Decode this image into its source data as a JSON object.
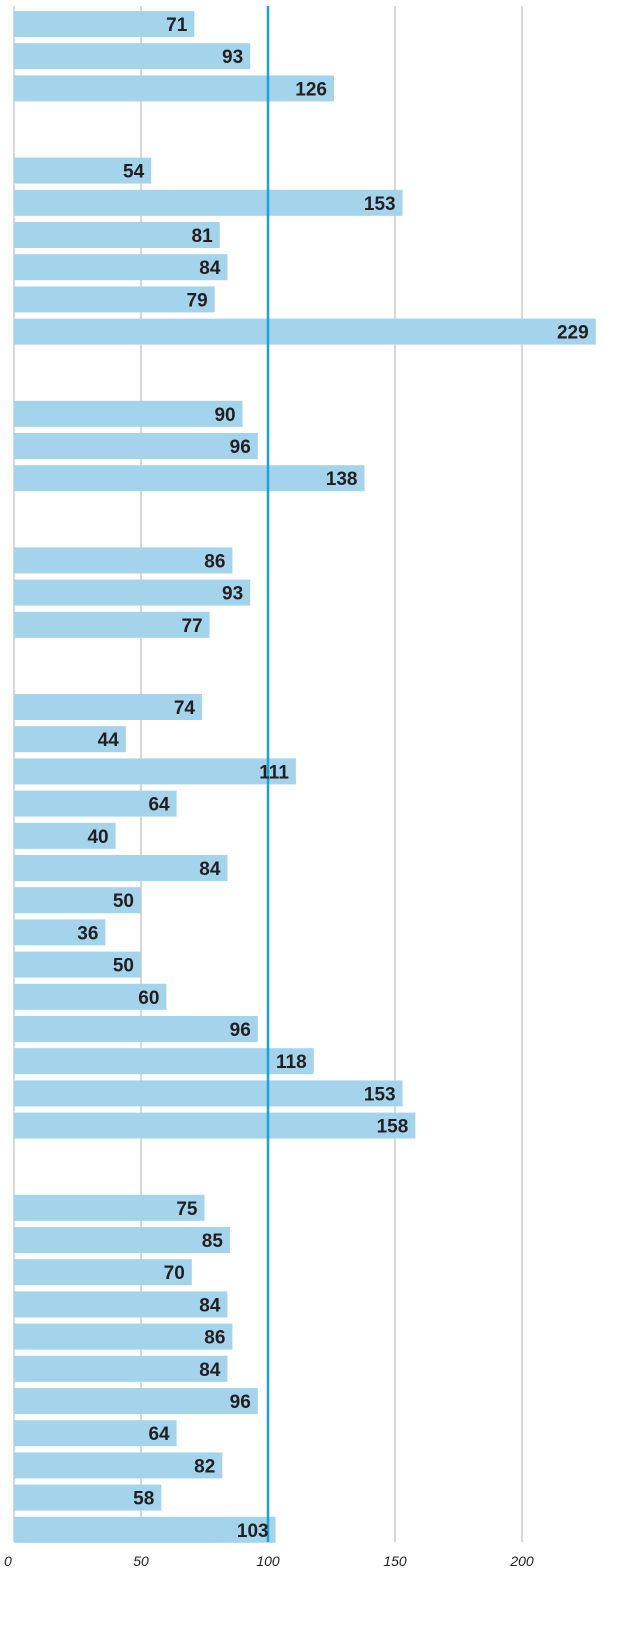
{
  "chart_data": {
    "type": "bar",
    "orientation": "horizontal",
    "xlim": [
      0,
      229
    ],
    "reference_line": 100,
    "grid": true,
    "colors": {
      "bar": "#a3d4ec",
      "reference": "#1aa3d6",
      "grid": "#bdbdbd",
      "label": "#231f20"
    },
    "x_ticks": [
      "0",
      "50",
      "100",
      "150",
      "200"
    ],
    "x_tick_values": [
      0,
      50,
      100,
      150,
      200
    ],
    "groups": [
      {
        "values": [
          71,
          93,
          126
        ]
      },
      {
        "values": [
          54,
          153,
          81,
          84,
          79,
          229
        ]
      },
      {
        "values": [
          90,
          96,
          138
        ]
      },
      {
        "values": [
          86,
          93,
          77
        ]
      },
      {
        "values": [
          74,
          44,
          111,
          64,
          40,
          84,
          50,
          36,
          50,
          60,
          96,
          118,
          153,
          158
        ]
      },
      {
        "values": [
          75,
          85,
          70,
          84,
          86,
          84,
          96,
          64,
          82,
          58,
          103
        ]
      }
    ]
  }
}
